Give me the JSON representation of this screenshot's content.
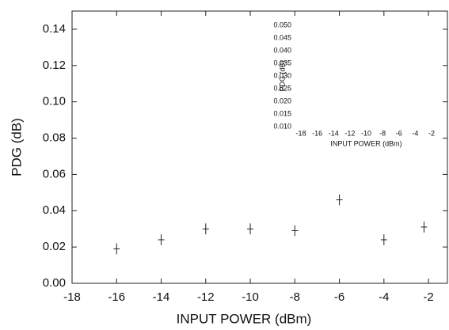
{
  "chart_data": [
    {
      "type": "scatter",
      "xlabel": "INPUT POWER (dBm)",
      "ylabel": "PDG (dB)",
      "x": [
        -16,
        -14,
        -12,
        -10,
        -8,
        -6,
        -4,
        -2.2
      ],
      "values": [
        0.019,
        0.024,
        0.03,
        0.03,
        0.029,
        0.046,
        0.024,
        0.031
      ],
      "errors": [
        0.003,
        0.003,
        0.003,
        0.003,
        0.003,
        0.003,
        0.003,
        0.003
      ],
      "color": "#222",
      "xlim": [
        -18,
        -1.15
      ],
      "ylim": [
        0,
        0.15
      ],
      "xticks": [
        -18,
        -16,
        -14,
        -12,
        -10,
        -8,
        -6,
        -4,
        -2
      ],
      "yticks": [
        {
          "value": 0,
          "label": "0.00"
        },
        {
          "value": 0.02,
          "label": "0.02"
        },
        {
          "value": 0.04,
          "label": "0.04"
        },
        {
          "value": 0.06,
          "label": "0.06"
        },
        {
          "value": 0.08,
          "label": "0.08"
        },
        {
          "value": 0.1,
          "label": "0.10"
        },
        {
          "value": 0.12,
          "label": "0.12"
        },
        {
          "value": 0.14,
          "label": "0.14"
        }
      ]
    },
    {
      "type": "inset",
      "xlabel": "INPUT POWER (dBm)",
      "ylabel": "PDG (dB)",
      "xlim": [
        -18,
        -2
      ],
      "ylim": [
        0.01,
        0.05
      ],
      "xticks": [
        -18,
        -16,
        -14,
        -12,
        -10,
        -8,
        -6,
        -4,
        -2
      ],
      "yticks": [
        {
          "value": 0.01,
          "label": "0.010"
        },
        {
          "value": 0.015,
          "label": "0.015"
        },
        {
          "value": 0.02,
          "label": "0.020"
        },
        {
          "value": 0.025,
          "label": "0.025"
        },
        {
          "value": 0.03,
          "label": "0.030"
        },
        {
          "value": 0.035,
          "label": "0.035"
        },
        {
          "value": 0.04,
          "label": "0.040"
        },
        {
          "value": 0.045,
          "label": "0.045"
        },
        {
          "value": 0.05,
          "label": "0.050"
        }
      ]
    }
  ]
}
